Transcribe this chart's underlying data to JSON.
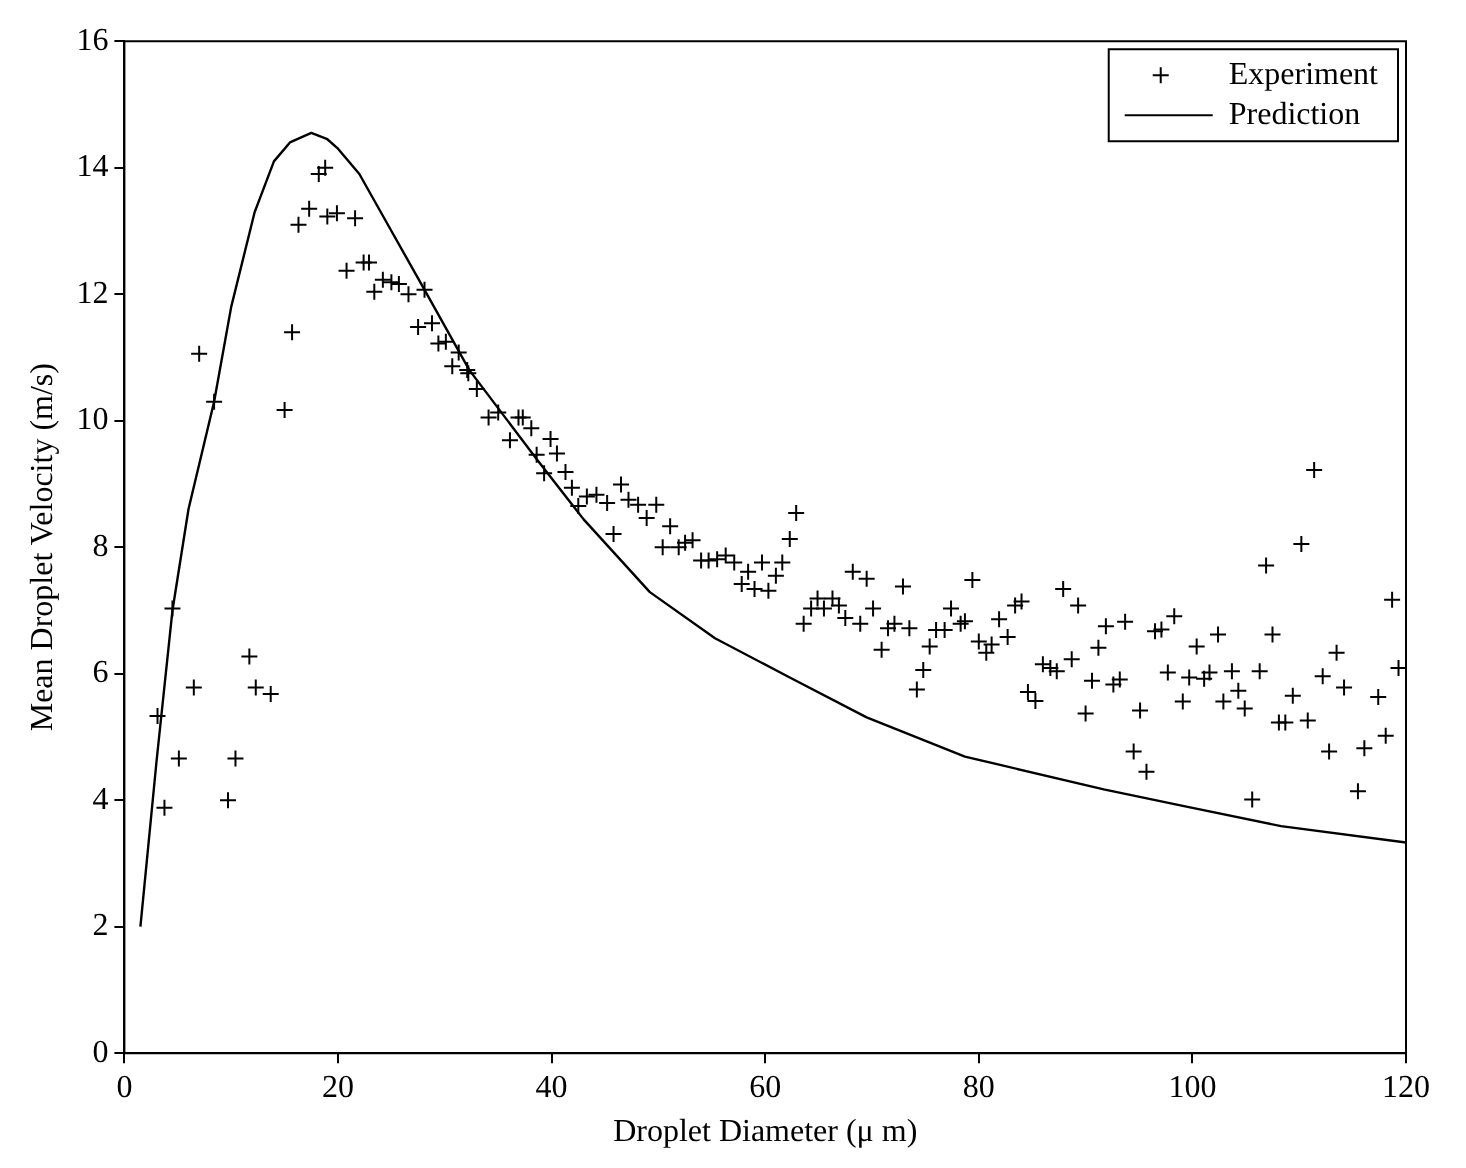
{
  "chart_data": {
    "type": "scatter",
    "xlabel": "Droplet Diameter (μ m)",
    "ylabel": "Mean Droplet Velocity (m/s)",
    "xlim": [
      0,
      120
    ],
    "ylim": [
      0,
      16
    ],
    "xticks": [
      0,
      20,
      40,
      60,
      80,
      100,
      120
    ],
    "yticks": [
      0,
      2,
      4,
      6,
      8,
      10,
      12,
      14,
      16
    ],
    "grid": false,
    "legend": "top right",
    "series": [
      {
        "name": "Experiment",
        "type": "scatter",
        "marker": "cross",
        "color": "#000000",
        "x": [
          3.1,
          3.75,
          4.5,
          5.1,
          6.5,
          7.0,
          8.4,
          9.7,
          10.4,
          11.7,
          12.3,
          13.7,
          15.0,
          15.7,
          16.3,
          17.3,
          18.2,
          18.8,
          19.0,
          19.9,
          21.6,
          20.8,
          22.4,
          22.9,
          23.4,
          24.2,
          25.0,
          25.7,
          26.6,
          28.1,
          27.5,
          28.8,
          29.4,
          30.1,
          31.3,
          30.7,
          32.1,
          32.2,
          33.0,
          34.1,
          35.0,
          36.1,
          36.9,
          37.3,
          38.1,
          38.6,
          39.9,
          40.5,
          39.3,
          41.3,
          41.9,
          42.5,
          43.3,
          44.2,
          45.2,
          45.8,
          46.5,
          47.2,
          48.1,
          48.9,
          49.8,
          51.1,
          50.4,
          51.9,
          52.5,
          53.2,
          54.0,
          54.7,
          55.5,
          56.3,
          57.1,
          57.8,
          58.4,
          59.0,
          60.3,
          59.7,
          61.0,
          61.6,
          62.3,
          62.9,
          63.6,
          64.3,
          64.9,
          65.5,
          66.3,
          66.9,
          67.5,
          68.2,
          69.5,
          68.9,
          70.1,
          70.9,
          71.5,
          72.1,
          72.9,
          73.5,
          74.2,
          74.8,
          75.4,
          76.0,
          76.8,
          77.4,
          78.3,
          78.7,
          79.4,
          80.0,
          80.7,
          81.2,
          81.9,
          82.7,
          83.4,
          84.0,
          84.6,
          85.3,
          86.0,
          86.7,
          87.3,
          87.9,
          88.7,
          89.3,
          90.0,
          90.6,
          91.2,
          91.9,
          93.7,
          92.6,
          93.2,
          94.5,
          95.7,
          95.1,
          96.5,
          97.1,
          98.3,
          97.7,
          99.1,
          99.7,
          100.4,
          101.1,
          101.6,
          102.4,
          102.9,
          103.7,
          104.3,
          104.9,
          105.6,
          106.3,
          106.9,
          107.5,
          108.1,
          108.7,
          109.4,
          110.2,
          110.8,
          111.4,
          112.2,
          112.8,
          113.5,
          114.2,
          115.5,
          116.1,
          117.4,
          118.1,
          118.7,
          119.3
        ],
        "values": [
          5.33,
          3.88,
          7.03,
          4.66,
          5.78,
          11.06,
          10.3,
          4.0,
          4.66,
          6.27,
          5.78,
          5.68,
          10.17,
          11.4,
          13.1,
          13.35,
          13.9,
          14.0,
          13.23,
          13.28,
          13.2,
          12.37,
          12.5,
          12.5,
          12.04,
          12.23,
          12.19,
          12.16,
          12.0,
          12.07,
          11.48,
          11.54,
          11.22,
          11.25,
          11.08,
          10.86,
          10.8,
          10.75,
          10.5,
          10.05,
          10.13,
          9.69,
          10.05,
          10.05,
          9.88,
          9.46,
          9.71,
          9.48,
          9.17,
          9.19,
          8.94,
          8.65,
          8.8,
          8.83,
          8.7,
          8.21,
          8.99,
          8.75,
          8.67,
          8.46,
          8.67,
          8.33,
          8.0,
          8.0,
          8.07,
          8.11,
          7.79,
          7.79,
          7.81,
          7.87,
          7.76,
          7.42,
          7.61,
          7.34,
          7.31,
          7.76,
          7.55,
          7.76,
          8.13,
          8.54,
          6.79,
          7.03,
          7.19,
          7.03,
          7.19,
          7.08,
          6.88,
          7.61,
          7.5,
          6.79,
          7.03,
          6.38,
          6.72,
          6.79,
          7.38,
          6.72,
          5.75,
          6.06,
          6.43,
          6.69,
          6.69,
          7.03,
          6.79,
          6.83,
          7.48,
          6.51,
          6.33,
          6.46,
          6.86,
          6.58,
          7.08,
          7.14,
          5.71,
          5.57,
          6.15,
          6.09,
          6.04,
          7.34,
          6.23,
          7.08,
          5.37,
          5.89,
          6.41,
          6.75,
          6.82,
          5.83,
          5.91,
          4.77,
          4.45,
          5.42,
          6.67,
          6.7,
          6.91,
          6.02,
          5.56,
          5.94,
          6.43,
          5.92,
          6.02,
          6.62,
          5.56,
          6.04,
          5.73,
          5.45,
          4.01,
          6.04,
          7.71,
          6.62,
          5.23,
          5.23,
          5.65,
          8.05,
          5.26,
          9.22,
          5.96,
          4.77,
          6.33,
          5.78,
          4.14,
          4.82,
          5.63,
          5.02,
          7.17,
          6.09
        ]
      },
      {
        "name": "Prediction",
        "type": "line",
        "marker": "none",
        "line_style": "solid",
        "color": "#000000",
        "x": [
          1.5,
          3,
          4.5,
          6,
          8.4,
          10,
          12.2,
          14,
          15.5,
          17.5,
          19,
          20,
          22,
          24,
          28,
          32.3,
          38.7,
          43,
          49.2,
          55.3,
          62.3,
          69.5,
          78.7,
          91.7,
          99.1,
          108.3,
          120
        ],
        "values": [
          2.0,
          4.6,
          7.0,
          8.6,
          10.3,
          11.8,
          13.3,
          14.1,
          14.4,
          14.55,
          14.45,
          14.3,
          13.9,
          13.3,
          12.1,
          10.8,
          9.37,
          8.44,
          7.29,
          6.56,
          5.94,
          5.31,
          4.69,
          4.17,
          3.91,
          3.59,
          3.33
        ]
      }
    ]
  }
}
